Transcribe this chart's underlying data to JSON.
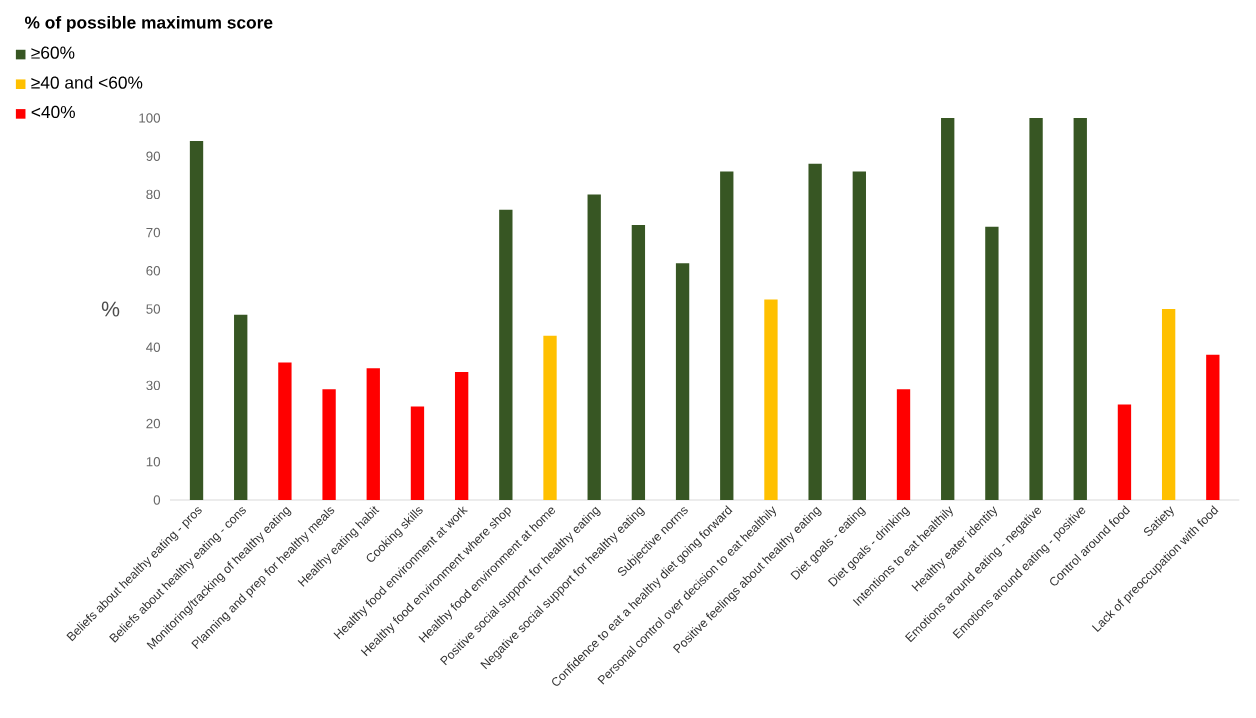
{
  "chart_data": {
    "type": "bar",
    "legend_title": "% of possible maximum score",
    "ylabel": "%",
    "categories": [
      "Beliefs about healthy eating - pros",
      "Beliefs about healthy eating - cons",
      "Monitoring/tracking of healthy eating",
      "Planning and prep for healthy meals",
      "Healthy eating habit",
      "Cooking skills",
      "Healthy food environment at work",
      "Healthy food environment where shop",
      "Healthy food environment at  home",
      "Positive social support for healthy eating",
      "Negative social support for healthy eating",
      "Subjective norms",
      "Confidence to eat a healthy diet going forward",
      "Personal control over decision to eat healthily",
      "Positive feelings about healthy eating",
      "Diet goals - eating",
      "Diet goals - drinking",
      "Intentions to eat healthily",
      "Healthy eater identity",
      "Emotions around eating - negative",
      "Emotions around eating - positive",
      "Control around food",
      "Satiety",
      "Lack of preoccupation with food"
    ],
    "series": [
      {
        "name": "≥60%",
        "color": "#375623",
        "values": [
          94,
          48.5,
          null,
          null,
          null,
          null,
          null,
          76,
          null,
          80,
          72,
          62,
          86,
          null,
          88,
          86,
          null,
          100,
          71.5,
          100,
          100,
          null,
          null,
          null
        ]
      },
      {
        "name": "≥40 and <60%",
        "color": "#ffc000",
        "values": [
          null,
          null,
          null,
          null,
          null,
          null,
          null,
          null,
          43,
          null,
          null,
          null,
          null,
          52.5,
          null,
          null,
          null,
          null,
          null,
          null,
          null,
          null,
          50,
          null
        ]
      },
      {
        "name": "<40%",
        "color": "#ff0000",
        "values": [
          null,
          null,
          36,
          29,
          34.5,
          24.5,
          33.5,
          null,
          null,
          null,
          null,
          null,
          null,
          null,
          null,
          null,
          29,
          null,
          null,
          null,
          null,
          25,
          null,
          38
        ]
      }
    ],
    "ylim": [
      0,
      100
    ],
    "yticks": [
      0,
      10,
      20,
      30,
      40,
      50,
      60,
      70,
      80,
      90,
      100
    ],
    "legend": "top left"
  }
}
